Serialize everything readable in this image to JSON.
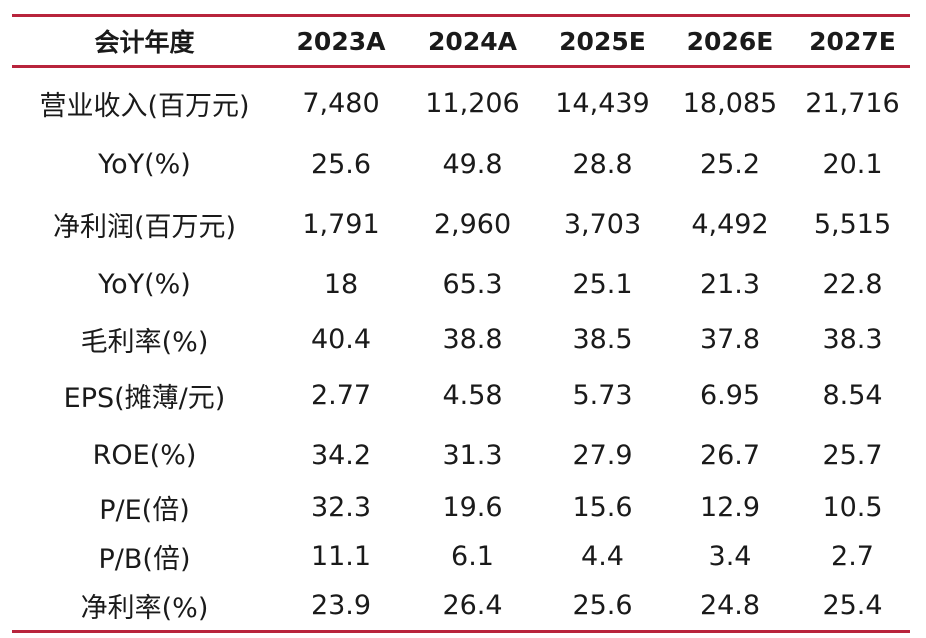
{
  "colors": {
    "rule": "#b8243c",
    "text": "#1a1a1a"
  },
  "table": {
    "headers": [
      "会计年度",
      "2023A",
      "2024A",
      "2025E",
      "2026E",
      "2027E"
    ],
    "rows": [
      [
        "营业收入(百万元)",
        "7,480",
        "11,206",
        "14,439",
        "18,085",
        "21,716"
      ],
      [
        "YoY(%)",
        "25.6",
        "49.8",
        "28.8",
        "25.2",
        "20.1"
      ],
      [
        "净利润(百万元)",
        "1,791",
        "2,960",
        "3,703",
        "4,492",
        "5,515"
      ],
      [
        "YoY(%)",
        "18",
        "65.3",
        "25.1",
        "21.3",
        "22.8"
      ],
      [
        "毛利率(%)",
        "40.4",
        "38.8",
        "38.5",
        "37.8",
        "38.3"
      ],
      [
        "EPS(摊薄/元)",
        "2.77",
        "4.58",
        "5.73",
        "6.95",
        "8.54"
      ],
      [
        "ROE(%)",
        "34.2",
        "31.3",
        "27.9",
        "26.7",
        "25.7"
      ],
      [
        "P/E(倍)",
        "32.3",
        "19.6",
        "15.6",
        "12.9",
        "10.5"
      ],
      [
        "P/B(倍)",
        "11.1",
        "6.1",
        "4.4",
        "3.4",
        "2.7"
      ],
      [
        "净利率(%)",
        "23.9",
        "26.4",
        "25.6",
        "24.8",
        "25.4"
      ]
    ]
  }
}
